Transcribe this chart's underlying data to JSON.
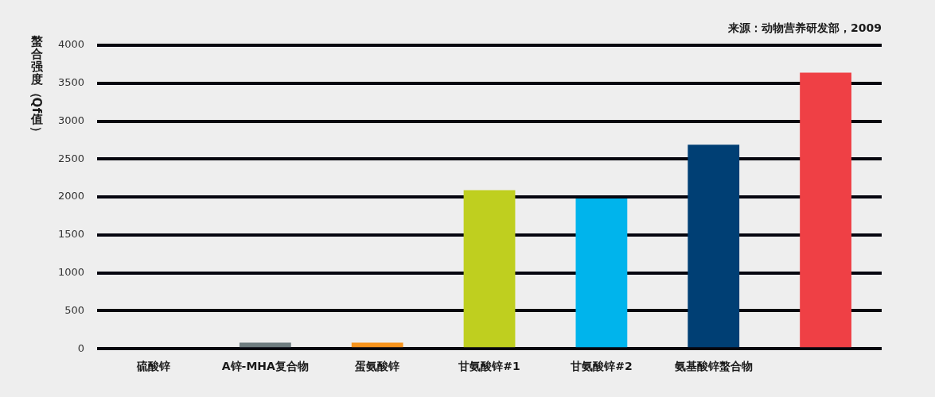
{
  "chart_data": {
    "type": "bar",
    "ylabel": "螯合强度（Qf值）",
    "annotations": [
      "来源：动物营养研发部，2009"
    ],
    "categories": [
      "硫酸锌",
      "A锌-MHA复合物",
      "蛋氨酸锌",
      "甘氨酸锌#1",
      "甘氨酸锌#2",
      "氨基酸锌螯合物",
      null
    ],
    "values": [
      0,
      80,
      80,
      2090,
      1980,
      2690,
      3640
    ],
    "colors": [
      null,
      "#6f7d80",
      "#f7941d",
      "#bfcf1f",
      "#00b4ec",
      "#003f74",
      "#ef4045"
    ],
    "ylim": [
      0,
      4000
    ],
    "yticks": [
      0,
      500,
      1000,
      1500,
      2000,
      2500,
      3000,
      3500,
      4000
    ],
    "grid": "y"
  }
}
